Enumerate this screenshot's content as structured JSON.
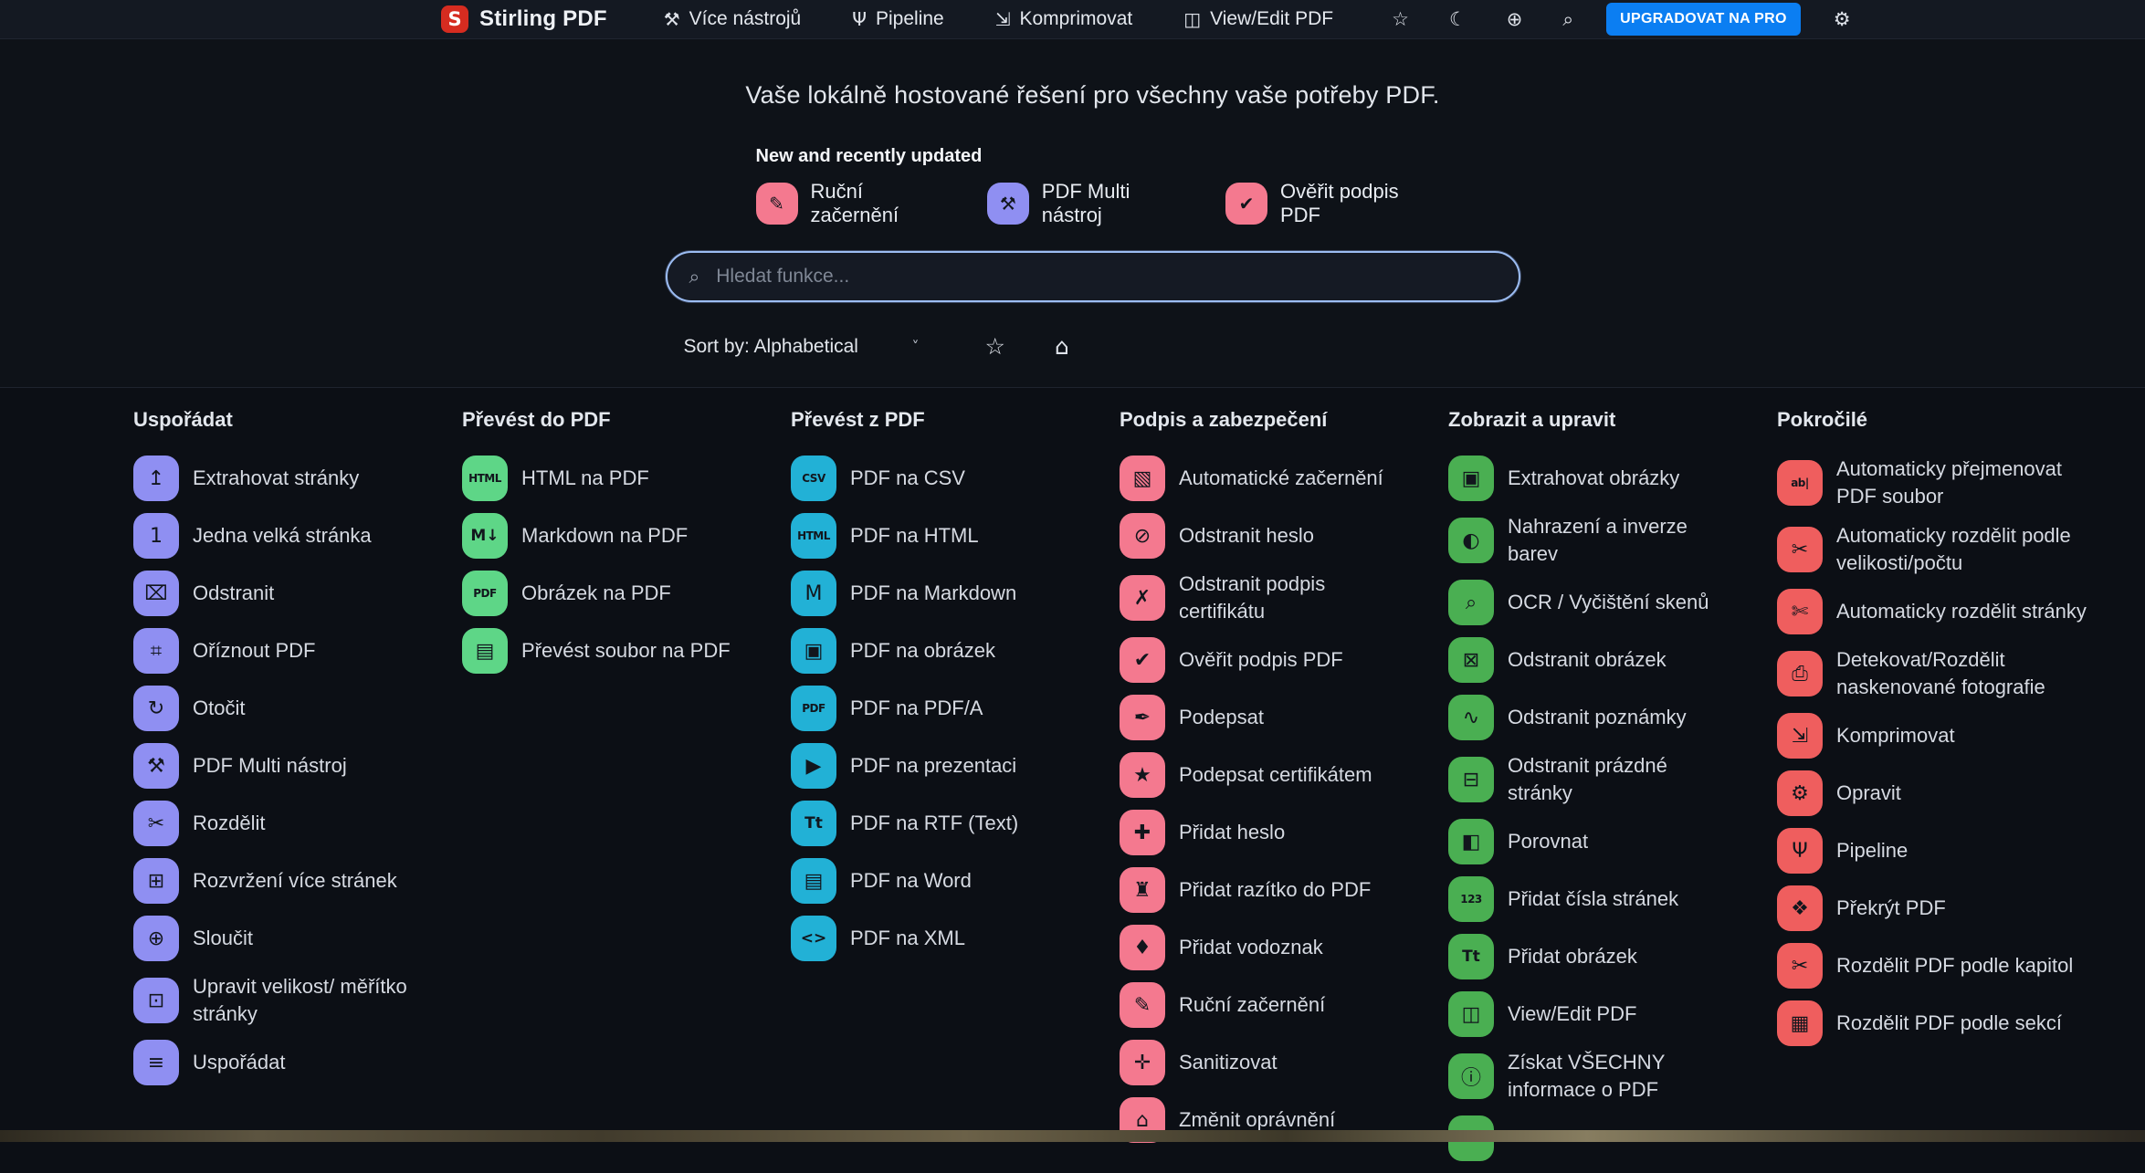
{
  "navbar": {
    "brand": "Stirling PDF",
    "logo_letter": "S",
    "items": [
      {
        "label": "Více nástrojů",
        "glyph": "⚒",
        "icon": "tools-icon"
      },
      {
        "label": "Pipeline",
        "glyph": "Ψ",
        "icon": "pipeline-icon"
      },
      {
        "label": "Komprimovat",
        "glyph": "⇲",
        "icon": "compress-icon"
      },
      {
        "label": "View/Edit PDF",
        "glyph": "◫",
        "icon": "book-icon"
      }
    ],
    "right_icons": [
      {
        "name": "star-icon",
        "glyph": "☆"
      },
      {
        "name": "moon-icon",
        "glyph": "☾"
      },
      {
        "name": "globe-icon",
        "glyph": "⊕"
      },
      {
        "name": "search-icon",
        "glyph": "⌕"
      }
    ],
    "upgrade_label": "UPGRADOVAT NA PRO",
    "gear_glyph": "⚙"
  },
  "hero": {
    "title": "Vaše lokálně hostované řešení pro všechny vaše potřeby PDF.",
    "new_label": "New and recently updated",
    "featured": [
      {
        "label": "Ruční začernění",
        "glyph": "✎",
        "color": "#f4798f"
      },
      {
        "label": "PDF Multi nástroj",
        "glyph": "⚒",
        "color": "#8f8ff2"
      },
      {
        "label": "Ověřit podpis PDF",
        "glyph": "✔",
        "color": "#f4798f"
      }
    ],
    "search_placeholder": "Hledat funkce...",
    "search_glyph": "⌕",
    "sort_label": "Sort by: Alphabetical",
    "star_glyph": "☆",
    "home_glyph": "⌂"
  },
  "sections": [
    {
      "title": "Uspořádat",
      "color": "#8f8ff2",
      "items": [
        {
          "label": "Extrahovat stránky",
          "glyph": "↥"
        },
        {
          "label": "Jedna velká stránka",
          "glyph": "1"
        },
        {
          "label": "Odstranit",
          "glyph": "⌧"
        },
        {
          "label": "Oříznout PDF",
          "glyph": "⌗"
        },
        {
          "label": "Otočit",
          "glyph": "↻"
        },
        {
          "label": "PDF Multi nástroj",
          "glyph": "⚒"
        },
        {
          "label": "Rozdělit",
          "glyph": "✂"
        },
        {
          "label": "Rozvržení více stránek",
          "glyph": "⊞"
        },
        {
          "label": "Sloučit",
          "glyph": "⊕"
        },
        {
          "label": "Upravit velikost/ měřítko stránky",
          "glyph": "⊡"
        },
        {
          "label": "Uspořádat",
          "glyph": "≡"
        }
      ]
    },
    {
      "title": "Převést do PDF",
      "color": "#5ed687",
      "items": [
        {
          "label": "HTML na PDF",
          "glyph": "HTML"
        },
        {
          "label": "Markdown na PDF",
          "glyph": "M↓"
        },
        {
          "label": "Obrázek na PDF",
          "glyph": "PDF"
        },
        {
          "label": "Převést soubor na PDF",
          "glyph": "▤"
        }
      ]
    },
    {
      "title": "Převést z PDF",
      "color": "#22b1d6",
      "items": [
        {
          "label": "PDF na CSV",
          "glyph": "CSV"
        },
        {
          "label": "PDF na HTML",
          "glyph": "HTML"
        },
        {
          "label": "PDF na Markdown",
          "glyph": "M"
        },
        {
          "label": "PDF na obrázek",
          "glyph": "▣"
        },
        {
          "label": "PDF na PDF/A",
          "glyph": "PDF"
        },
        {
          "label": "PDF na prezentaci",
          "glyph": "▶"
        },
        {
          "label": "PDF na RTF (Text)",
          "glyph": "Tt"
        },
        {
          "label": "PDF na Word",
          "glyph": "▤"
        },
        {
          "label": "PDF na XML",
          "glyph": "<>"
        }
      ]
    },
    {
      "title": "Podpis a zabezpečení",
      "color": "#f4798f",
      "items": [
        {
          "label": "Automatické začernění",
          "glyph": "▧"
        },
        {
          "label": "Odstranit heslo",
          "glyph": "⊘"
        },
        {
          "label": "Odstranit podpis certifikátu",
          "glyph": "✗"
        },
        {
          "label": "Ověřit podpis PDF",
          "glyph": "✔"
        },
        {
          "label": "Podepsat",
          "glyph": "✒"
        },
        {
          "label": "Podepsat certifikátem",
          "glyph": "★"
        },
        {
          "label": "Přidat heslo",
          "glyph": "✚"
        },
        {
          "label": "Přidat razítko do PDF",
          "glyph": "♜"
        },
        {
          "label": "Přidat vodoznak",
          "glyph": "♦"
        },
        {
          "label": "Ruční začernění",
          "glyph": "✎"
        },
        {
          "label": "Sanitizovat",
          "glyph": "✛"
        },
        {
          "label": "Změnit oprávnění",
          "glyph": "⌂"
        }
      ]
    },
    {
      "title": "Zobrazit a upravit",
      "color": "#4aaf52",
      "items": [
        {
          "label": "Extrahovat obrázky",
          "glyph": "▣"
        },
        {
          "label": "Nahrazení a inverze barev",
          "glyph": "◐"
        },
        {
          "label": "OCR / Vyčištění skenů",
          "glyph": "⌕"
        },
        {
          "label": "Odstranit obrázek",
          "glyph": "⊠"
        },
        {
          "label": "Odstranit poznámky",
          "glyph": "∿"
        },
        {
          "label": "Odstranit prázdné stránky",
          "glyph": "⊟"
        },
        {
          "label": "Porovnat",
          "glyph": "◧"
        },
        {
          "label": "Přidat čísla stránek",
          "glyph": "123"
        },
        {
          "label": "Přidat obrázek",
          "glyph": "Tt"
        },
        {
          "label": "View/Edit PDF",
          "glyph": "◫"
        },
        {
          "label": "Získat VŠECHNY informace o PDF",
          "glyph": "ⓘ"
        },
        {
          "label": "",
          "glyph": ""
        }
      ]
    },
    {
      "title": "Pokročilé",
      "color": "#ef5e5e",
      "items": [
        {
          "label": "Automaticky přejmenovat PDF soubor",
          "glyph": "ab|"
        },
        {
          "label": "Automaticky rozdělit podle velikosti/počtu",
          "glyph": "✂"
        },
        {
          "label": "Automaticky rozdělit stránky",
          "glyph": "✄"
        },
        {
          "label": "Detekovat/Rozdělit naskenované fotografie",
          "glyph": "⎙"
        },
        {
          "label": "Komprimovat",
          "glyph": "⇲"
        },
        {
          "label": "Opravit",
          "glyph": "⚙"
        },
        {
          "label": "Pipeline",
          "glyph": "Ψ"
        },
        {
          "label": "Překrýt PDF",
          "glyph": "❖"
        },
        {
          "label": "Rozdělit PDF podle kapitol",
          "glyph": "✂"
        },
        {
          "label": "Rozdělit PDF podle sekcí",
          "glyph": "▦"
        }
      ]
    }
  ]
}
